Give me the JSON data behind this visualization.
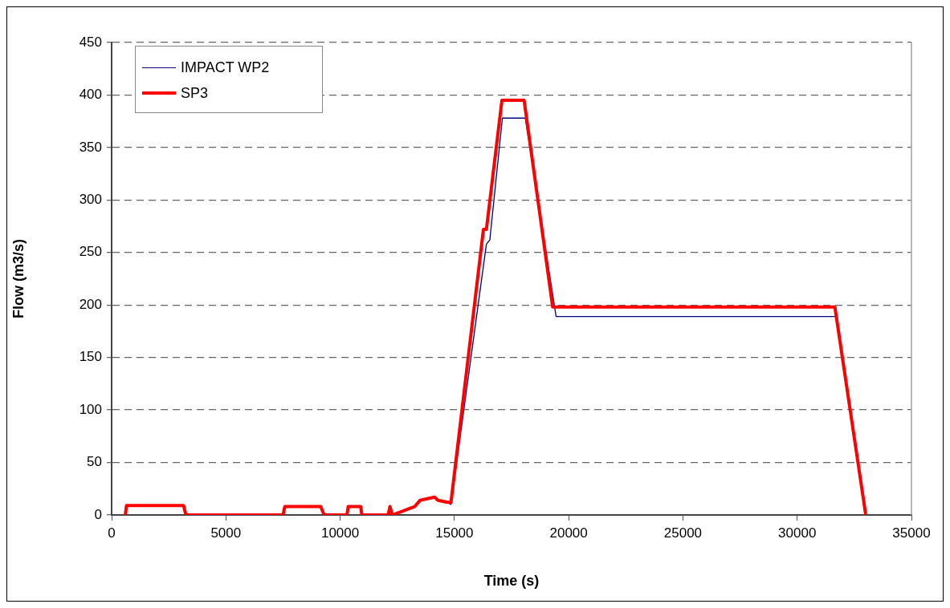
{
  "chart_data": {
    "type": "line",
    "xlabel": "Time (s)",
    "ylabel": "Flow (m3/s)",
    "xlim": [
      0,
      35000
    ],
    "xticks": [
      0,
      5000,
      10000,
      15000,
      20000,
      25000,
      30000,
      35000
    ],
    "ylim": [
      0,
      450
    ],
    "yticks": [
      0,
      50,
      100,
      150,
      200,
      250,
      300,
      350,
      400,
      450
    ],
    "grid": "y",
    "legend": "top left",
    "marker": "none",
    "line_style": "solid",
    "series": [
      {
        "name": "IMPACT WP2",
        "color": "#000080",
        "x": [
          14700,
          14850,
          16400,
          16550,
          17100,
          18100,
          19450,
          31650
        ],
        "values": [
          12,
          10,
          258,
          262,
          378,
          378,
          189,
          189
        ]
      },
      {
        "name": "SP3",
        "color": "#ff0000",
        "x": [
          600,
          650,
          3150,
          3250,
          7500,
          7580,
          9150,
          9300,
          10300,
          10350,
          10900,
          10950,
          12100,
          12180,
          12280,
          12770,
          13260,
          13500,
          14130,
          14280,
          14700,
          14850,
          16270,
          16400,
          17080,
          18050,
          19300,
          31650,
          33000
        ],
        "values": [
          0,
          9,
          9,
          0,
          0,
          8,
          8,
          0,
          0,
          8,
          8,
          0,
          0,
          8,
          0,
          4,
          8,
          14,
          17,
          14,
          12,
          12,
          272,
          272,
          395,
          395,
          198,
          198,
          0
        ]
      }
    ]
  }
}
